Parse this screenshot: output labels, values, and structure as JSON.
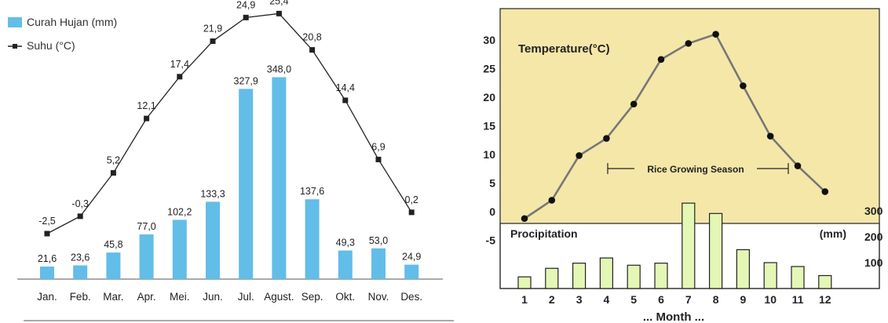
{
  "chart_data": [
    {
      "type": "bar",
      "legend": {
        "bar": "Curah Hujan (mm)",
        "line": "Suhu (°C)"
      },
      "categories": [
        "Jan.",
        "Feb.",
        "Mar.",
        "Apr.",
        "Mei.",
        "Jun.",
        "Jul.",
        "Agust.",
        "Sep.",
        "Okt.",
        "Nov.",
        "Des."
      ],
      "series": [
        {
          "name": "Curah Hujan (mm)",
          "type": "bar",
          "values": [
            21.6,
            23.6,
            45.8,
            77.0,
            102.2,
            133.3,
            327.9,
            348.0,
            137.6,
            49.3,
            53.0,
            24.9
          ],
          "labels": [
            "21,6",
            "23,6",
            "45,8",
            "77,0",
            "102,2",
            "133,3",
            "327,9",
            "348,0",
            "137,6",
            "49,3",
            "53,0",
            "24,9"
          ],
          "color": "#62bde9"
        },
        {
          "name": "Suhu (°C)",
          "type": "line",
          "values": [
            -2.5,
            -0.3,
            5.2,
            12.1,
            17.4,
            21.9,
            24.9,
            25.4,
            20.8,
            14.4,
            6.9,
            0.2
          ],
          "labels": [
            "-2,5",
            "-0,3",
            "5,2",
            "12,1",
            "17,4",
            "21,9",
            "24,9",
            "25,4",
            "20,8",
            "14,4",
            "6,9",
            "0,2"
          ],
          "color": "#222222"
        }
      ]
    },
    {
      "type": "line",
      "background": "#f5e7a8",
      "x": [
        1,
        2,
        3,
        4,
        5,
        6,
        7,
        8,
        9,
        10,
        11,
        12
      ],
      "xlabel": "... Month ...",
      "temperature": {
        "label": "Temperature(°C)",
        "values": [
          -1.2,
          2,
          9.8,
          12.8,
          18.8,
          26.6,
          29.4,
          31,
          22,
          13.2,
          8,
          3.5
        ],
        "ylim": [
          -5,
          30
        ],
        "yticks": [
          "30",
          "25",
          "20",
          "15",
          "10",
          "5",
          "0",
          "-5"
        ]
      },
      "precipitation": {
        "label": "Procipitation",
        "unit": "(mm)",
        "values": [
          45,
          78,
          98,
          118,
          90,
          98,
          330,
          290,
          150,
          100,
          85,
          50
        ],
        "yticks": [
          "300",
          "200",
          "100"
        ],
        "color": "#e4f7b5"
      },
      "annotation": "Rice Growing Season"
    }
  ]
}
